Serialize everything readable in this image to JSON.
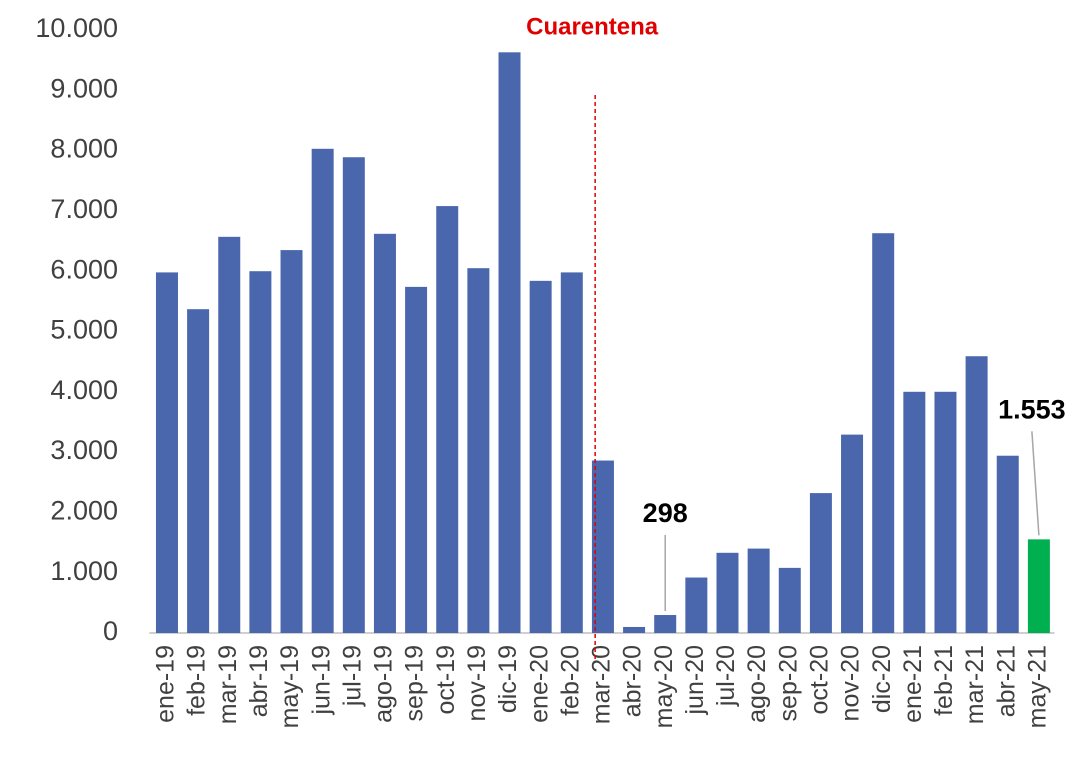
{
  "chart_data": {
    "type": "bar",
    "annotation": {
      "text": "Cuarentena",
      "color": "#e00000"
    },
    "categories": [
      "ene-19",
      "feb-19",
      "mar-19",
      "abr-19",
      "may-19",
      "jun-19",
      "jul-19",
      "ago-19",
      "sep-19",
      "oct-19",
      "nov-19",
      "dic-19",
      "ene-20",
      "feb-20",
      "mar-20",
      "abr-20",
      "may-20",
      "jun-20",
      "jul-20",
      "ago-20",
      "sep-20",
      "oct-20",
      "nov-20",
      "dic-20",
      "ene-21",
      "feb-21",
      "mar-21",
      "abr-21",
      "may-21"
    ],
    "values": [
      5980,
      5370,
      6570,
      6000,
      6350,
      8030,
      7890,
      6620,
      5740,
      7080,
      6050,
      9630,
      5840,
      5980,
      2860,
      100,
      298,
      920,
      1330,
      1400,
      1080,
      2320,
      3290,
      6630,
      4000,
      4000,
      4590,
      2940,
      1553
    ],
    "value_labels": [
      null,
      null,
      null,
      null,
      null,
      null,
      null,
      null,
      null,
      null,
      null,
      null,
      null,
      null,
      null,
      null,
      "298",
      null,
      null,
      null,
      null,
      null,
      null,
      null,
      null,
      null,
      null,
      null,
      "1.553"
    ],
    "colors": [
      "#4a67ad",
      "#4a67ad",
      "#4a67ad",
      "#4a67ad",
      "#4a67ad",
      "#4a67ad",
      "#4a67ad",
      "#4a67ad",
      "#4a67ad",
      "#4a67ad",
      "#4a67ad",
      "#4a67ad",
      "#4a67ad",
      "#4a67ad",
      "#4a67ad",
      "#4a67ad",
      "#4a67ad",
      "#4a67ad",
      "#4a67ad",
      "#4a67ad",
      "#4a67ad",
      "#4a67ad",
      "#4a67ad",
      "#4a67ad",
      "#4a67ad",
      "#4a67ad",
      "#4a67ad",
      "#4a67ad",
      "#00b050"
    ],
    "ylim": [
      0,
      10000
    ],
    "yticks": [
      0,
      {
        "value": 1000,
        "label": "1.000"
      },
      {
        "value": 2000,
        "label": "2.000"
      },
      {
        "value": 3000,
        "label": "3.000"
      },
      {
        "value": 4000,
        "label": "4.000"
      },
      {
        "value": 5000,
        "label": "5.000"
      },
      {
        "value": 6000,
        "label": "6.000"
      },
      {
        "value": 7000,
        "label": "7.000"
      },
      {
        "value": 8000,
        "label": "8.000"
      },
      {
        "value": 9000,
        "label": "9.000"
      },
      {
        "value": 10000,
        "label": "10.000"
      }
    ],
    "grid": false
  }
}
